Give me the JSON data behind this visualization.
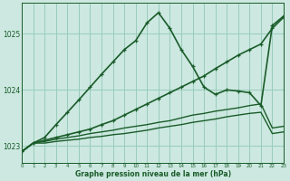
{
  "title": "Graphe pression niveau de la mer (hPa)",
  "bg_color": "#cce8e0",
  "grid_color": "#99ccbb",
  "line_color": "#1a5c2a",
  "xlim": [
    0,
    23
  ],
  "ylim": [
    1022.7,
    1025.55
  ],
  "yticks": [
    1023,
    1024,
    1025
  ],
  "xticks": [
    0,
    1,
    2,
    3,
    4,
    5,
    6,
    7,
    8,
    9,
    10,
    11,
    12,
    13,
    14,
    15,
    16,
    17,
    18,
    19,
    20,
    21,
    22,
    23
  ],
  "series": [
    {
      "x": [
        0,
        1,
        2,
        3,
        4,
        5,
        6,
        7,
        8,
        9,
        10,
        11,
        12,
        13,
        14,
        15,
        16,
        17,
        18,
        19,
        20,
        21,
        22,
        23
      ],
      "y": [
        1022.9,
        1023.05,
        1023.05,
        1023.08,
        1023.1,
        1023.12,
        1023.15,
        1023.17,
        1023.2,
        1023.22,
        1023.25,
        1023.28,
        1023.32,
        1023.35,
        1023.38,
        1023.42,
        1023.45,
        1023.48,
        1023.52,
        1023.55,
        1023.58,
        1023.6,
        1023.22,
        1023.25
      ],
      "linewidth": 1.0,
      "marker": null
    },
    {
      "x": [
        0,
        1,
        2,
        3,
        4,
        5,
        6,
        7,
        8,
        9,
        10,
        11,
        12,
        13,
        14,
        15,
        16,
        17,
        18,
        19,
        20,
        21,
        22,
        23
      ],
      "y": [
        1022.9,
        1023.05,
        1023.08,
        1023.12,
        1023.15,
        1023.18,
        1023.22,
        1023.25,
        1023.28,
        1023.32,
        1023.35,
        1023.38,
        1023.42,
        1023.45,
        1023.5,
        1023.55,
        1023.58,
        1023.62,
        1023.65,
        1023.68,
        1023.72,
        1023.75,
        1023.32,
        1023.35
      ],
      "linewidth": 1.0,
      "marker": null
    },
    {
      "x": [
        0,
        1,
        2,
        3,
        4,
        5,
        6,
        7,
        8,
        9,
        10,
        11,
        12,
        13,
        14,
        15,
        16,
        17,
        18,
        19,
        20,
        21,
        22,
        23
      ],
      "y": [
        1022.9,
        1023.05,
        1023.1,
        1023.15,
        1023.2,
        1023.25,
        1023.3,
        1023.38,
        1023.45,
        1023.55,
        1023.65,
        1023.75,
        1023.85,
        1023.95,
        1024.05,
        1024.15,
        1024.25,
        1024.38,
        1024.5,
        1024.62,
        1024.72,
        1024.82,
        1025.1,
        1025.3
      ],
      "linewidth": 1.2,
      "marker": "+"
    },
    {
      "x": [
        0,
        1,
        2,
        3,
        4,
        5,
        6,
        7,
        8,
        9,
        10,
        11,
        12,
        13,
        14,
        15,
        16,
        17,
        18,
        19,
        20,
        21,
        22,
        23
      ],
      "y": [
        1022.9,
        1023.05,
        1023.15,
        1023.38,
        1023.6,
        1023.82,
        1024.05,
        1024.28,
        1024.5,
        1024.72,
        1024.88,
        1025.2,
        1025.38,
        1025.1,
        1024.72,
        1024.42,
        1024.05,
        1023.92,
        1024.0,
        1023.98,
        1023.95,
        1023.72,
        1025.15,
        1025.32
      ],
      "linewidth": 1.2,
      "marker": "+"
    }
  ]
}
